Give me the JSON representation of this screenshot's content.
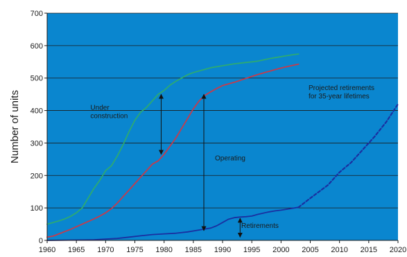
{
  "chart_data": {
    "type": "line",
    "title": "",
    "xlabel": "",
    "ylabel": "Number of units",
    "xlim": [
      1960,
      2020
    ],
    "ylim": [
      0,
      700
    ],
    "x_ticks": [
      1960,
      1965,
      1970,
      1975,
      1980,
      1985,
      1990,
      1995,
      2000,
      2005,
      2010,
      2015,
      2020
    ],
    "y_ticks": [
      0,
      100,
      200,
      300,
      400,
      500,
      600,
      700
    ],
    "grid": "horizontal",
    "legend": "none",
    "plot_background": "#0A86CF",
    "series": [
      {
        "color": "#2DAA72",
        "style": "solid",
        "points": [
          [
            1960,
            50
          ],
          [
            1961,
            55
          ],
          [
            1962,
            60
          ],
          [
            1963,
            66
          ],
          [
            1964,
            74
          ],
          [
            1965,
            85
          ],
          [
            1966,
            100
          ],
          [
            1967,
            130
          ],
          [
            1968,
            160
          ],
          [
            1969,
            185
          ],
          [
            1970,
            215
          ],
          [
            1971,
            230
          ],
          [
            1972,
            260
          ],
          [
            1973,
            295
          ],
          [
            1974,
            335
          ],
          [
            1975,
            370
          ],
          [
            1976,
            395
          ],
          [
            1977,
            410
          ],
          [
            1978,
            430
          ],
          [
            1979,
            450
          ],
          [
            1980,
            462
          ],
          [
            1981,
            478
          ],
          [
            1982,
            490
          ],
          [
            1983,
            500
          ],
          [
            1984,
            510
          ],
          [
            1985,
            517
          ],
          [
            1986,
            522
          ],
          [
            1987,
            527
          ],
          [
            1988,
            532
          ],
          [
            1989,
            535
          ],
          [
            1990,
            538
          ],
          [
            1991,
            541
          ],
          [
            1992,
            544
          ],
          [
            1993,
            546
          ],
          [
            1994,
            548
          ],
          [
            1995,
            550
          ],
          [
            1996,
            552
          ],
          [
            1997,
            556
          ],
          [
            1998,
            560
          ],
          [
            1999,
            563
          ],
          [
            2000,
            566
          ],
          [
            2001,
            569
          ],
          [
            2002,
            572
          ],
          [
            2003,
            574
          ]
        ]
      },
      {
        "color": "#C83A4A",
        "style": "solid",
        "points": [
          [
            1960,
            10
          ],
          [
            1961,
            13
          ],
          [
            1962,
            20
          ],
          [
            1963,
            27
          ],
          [
            1964,
            34
          ],
          [
            1965,
            42
          ],
          [
            1966,
            50
          ],
          [
            1967,
            58
          ],
          [
            1968,
            66
          ],
          [
            1969,
            75
          ],
          [
            1970,
            85
          ],
          [
            1971,
            98
          ],
          [
            1972,
            115
          ],
          [
            1973,
            135
          ],
          [
            1974,
            155
          ],
          [
            1975,
            175
          ],
          [
            1976,
            195
          ],
          [
            1977,
            215
          ],
          [
            1978,
            235
          ],
          [
            1979,
            245
          ],
          [
            1980,
            265
          ],
          [
            1981,
            290
          ],
          [
            1982,
            315
          ],
          [
            1983,
            345
          ],
          [
            1984,
            375
          ],
          [
            1985,
            405
          ],
          [
            1986,
            430
          ],
          [
            1987,
            447
          ],
          [
            1988,
            458
          ],
          [
            1989,
            468
          ],
          [
            1990,
            477
          ],
          [
            1991,
            482
          ],
          [
            1992,
            487
          ],
          [
            1993,
            493
          ],
          [
            1994,
            499
          ],
          [
            1995,
            505
          ],
          [
            1996,
            511
          ],
          [
            1997,
            516
          ],
          [
            1998,
            521
          ],
          [
            1999,
            526
          ],
          [
            2000,
            531
          ],
          [
            2001,
            535
          ],
          [
            2002,
            539
          ],
          [
            2003,
            543
          ]
        ]
      },
      {
        "color": "#1A2FA0",
        "style": "solid",
        "points": [
          [
            1960,
            0
          ],
          [
            1965,
            1
          ],
          [
            1968,
            2
          ],
          [
            1970,
            4
          ],
          [
            1972,
            6
          ],
          [
            1974,
            10
          ],
          [
            1976,
            14
          ],
          [
            1978,
            18
          ],
          [
            1980,
            20
          ],
          [
            1982,
            22
          ],
          [
            1984,
            26
          ],
          [
            1986,
            32
          ],
          [
            1988,
            38
          ],
          [
            1989,
            45
          ],
          [
            1990,
            55
          ],
          [
            1991,
            65
          ],
          [
            1992,
            70
          ],
          [
            1993,
            72
          ],
          [
            1994,
            73
          ],
          [
            1995,
            75
          ],
          [
            1996,
            80
          ],
          [
            1997,
            84
          ],
          [
            1998,
            88
          ],
          [
            1999,
            91
          ],
          [
            2000,
            93
          ],
          [
            2001,
            96
          ],
          [
            2002,
            99
          ],
          [
            2003,
            102
          ]
        ]
      },
      {
        "color": "#1A2FA0",
        "style": "dashed",
        "points": [
          [
            2003,
            102
          ],
          [
            2005,
            130
          ],
          [
            2008,
            170
          ],
          [
            2010,
            210
          ],
          [
            2012,
            240
          ],
          [
            2014,
            280
          ],
          [
            2016,
            320
          ],
          [
            2018,
            365
          ],
          [
            2020,
            420
          ]
        ]
      }
    ],
    "annotations": [
      {
        "lines": [
          "Under",
          "construction"
        ],
        "x": 1967.4,
        "y": 402
      },
      {
        "lines": [
          "Operating"
        ],
        "x": 1988.7,
        "y": 246
      },
      {
        "lines": [
          "Retirements"
        ],
        "x": 1993.2,
        "y": 38
      },
      {
        "lines": [
          "Projected retirements",
          "for 35-year lifetimes"
        ],
        "x": 2004.7,
        "y": 463
      }
    ],
    "arrows": [
      {
        "x": 1979.5,
        "y1": 450,
        "y2": 265
      },
      {
        "x": 1986.8,
        "y1": 450,
        "y2": 30
      },
      {
        "x": 1993.0,
        "y1": 68,
        "y2": 10
      }
    ]
  }
}
